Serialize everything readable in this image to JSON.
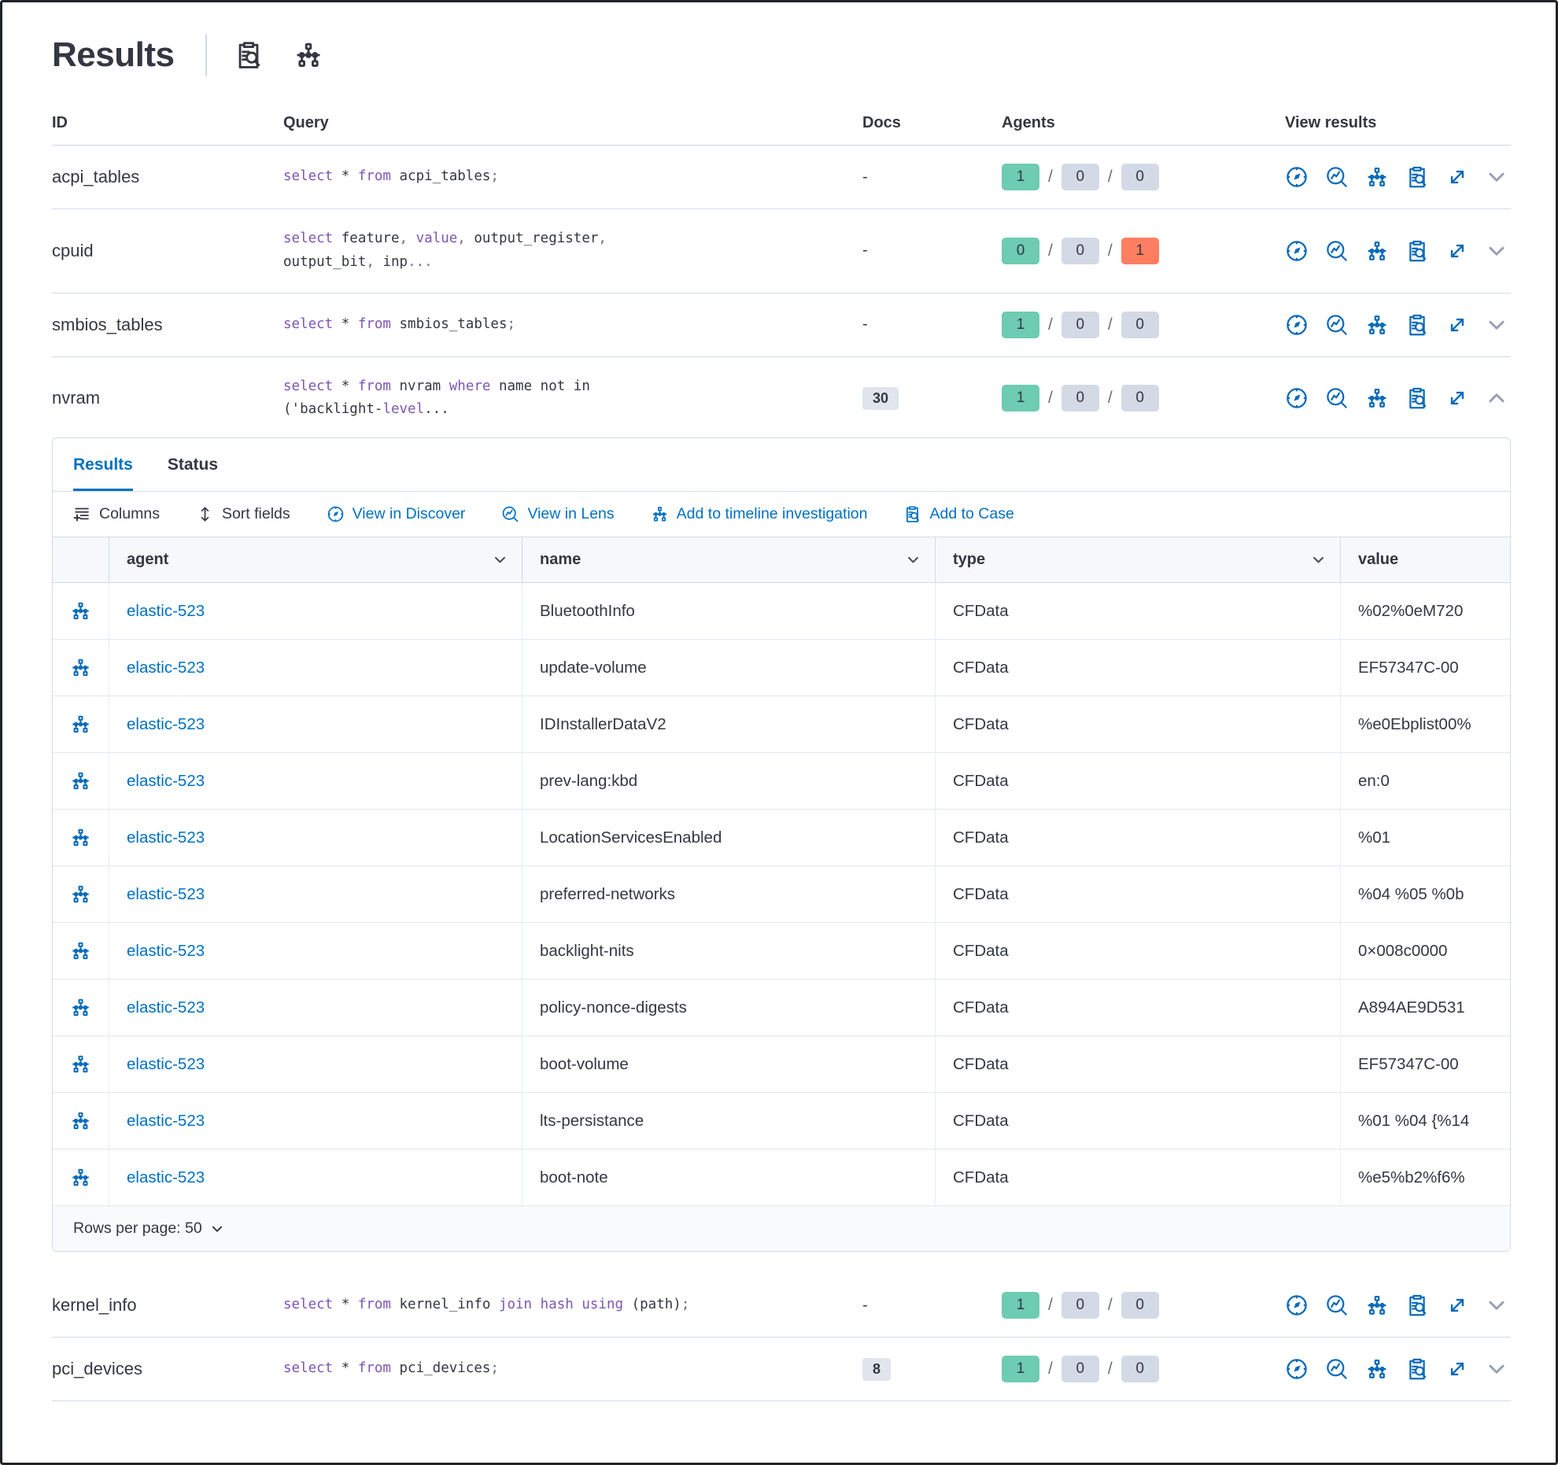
{
  "header": {
    "title": "Results"
  },
  "table": {
    "columns": {
      "id": "ID",
      "query": "Query",
      "docs": "Docs",
      "agents": "Agents",
      "view": "View results"
    }
  },
  "queries": [
    {
      "id": "acpi_tables",
      "docs": "-",
      "expanded": false,
      "agents": [
        {
          "value": "1",
          "color": "green"
        },
        {
          "value": "0",
          "color": "grey"
        },
        {
          "value": "0",
          "color": "grey"
        }
      ],
      "query": [
        [
          [
            "k",
            "select"
          ],
          [
            "t",
            " * "
          ],
          [
            "k",
            "from"
          ],
          [
            "t",
            " acpi_tables"
          ],
          [
            "p",
            ";"
          ]
        ]
      ]
    },
    {
      "id": "cpuid",
      "docs": "-",
      "expanded": false,
      "agents": [
        {
          "value": "0",
          "color": "green"
        },
        {
          "value": "0",
          "color": "grey"
        },
        {
          "value": "1",
          "color": "red"
        }
      ],
      "query": [
        [
          [
            "k",
            "select"
          ],
          [
            "t",
            " feature"
          ],
          [
            "p",
            ","
          ],
          [
            "t",
            " "
          ],
          [
            "k",
            "value"
          ],
          [
            "p",
            ","
          ],
          [
            "t",
            " output_register"
          ],
          [
            "p",
            ","
          ]
        ],
        [
          [
            "t",
            "output_bit"
          ],
          [
            "p",
            ","
          ],
          [
            "t",
            " inp"
          ],
          [
            "p",
            "..."
          ]
        ]
      ]
    },
    {
      "id": "smbios_tables",
      "docs": "-",
      "expanded": false,
      "agents": [
        {
          "value": "1",
          "color": "green"
        },
        {
          "value": "0",
          "color": "grey"
        },
        {
          "value": "0",
          "color": "grey"
        }
      ],
      "query": [
        [
          [
            "k",
            "select"
          ],
          [
            "t",
            " * "
          ],
          [
            "k",
            "from"
          ],
          [
            "t",
            " smbios_tables"
          ],
          [
            "p",
            ";"
          ]
        ]
      ]
    },
    {
      "id": "nvram",
      "docs": "30",
      "expanded": true,
      "agents": [
        {
          "value": "1",
          "color": "green"
        },
        {
          "value": "0",
          "color": "grey"
        },
        {
          "value": "0",
          "color": "grey"
        }
      ],
      "query": [
        [
          [
            "k",
            "select"
          ],
          [
            "t",
            " * "
          ],
          [
            "k",
            "from"
          ],
          [
            "t",
            " nvram "
          ],
          [
            "k",
            "where"
          ],
          [
            "t",
            " name not in"
          ]
        ],
        [
          [
            "t",
            "('backlight-"
          ],
          [
            "k",
            "level"
          ],
          [
            "t",
            "..."
          ]
        ]
      ]
    },
    {
      "id": "kernel_info",
      "docs": "-",
      "expanded": false,
      "agents": [
        {
          "value": "1",
          "color": "green"
        },
        {
          "value": "0",
          "color": "grey"
        },
        {
          "value": "0",
          "color": "grey"
        }
      ],
      "query": [
        [
          [
            "k",
            "select"
          ],
          [
            "t",
            " * "
          ],
          [
            "k",
            "from"
          ],
          [
            "t",
            " kernel_info "
          ],
          [
            "k",
            "join"
          ],
          [
            "t",
            " "
          ],
          [
            "k",
            "hash"
          ],
          [
            "t",
            " "
          ],
          [
            "k",
            "using"
          ],
          [
            "t",
            " (path)"
          ],
          [
            "p",
            ";"
          ]
        ]
      ]
    },
    {
      "id": "pci_devices",
      "docs": "8",
      "expanded": false,
      "agents": [
        {
          "value": "1",
          "color": "green"
        },
        {
          "value": "0",
          "color": "grey"
        },
        {
          "value": "0",
          "color": "grey"
        }
      ],
      "query": [
        [
          [
            "k",
            "select"
          ],
          [
            "t",
            " * "
          ],
          [
            "k",
            "from"
          ],
          [
            "t",
            " pci_devices"
          ],
          [
            "p",
            ";"
          ]
        ]
      ]
    }
  ],
  "panel": {
    "tabs": [
      {
        "label": "Results",
        "active": true
      },
      {
        "label": "Status",
        "active": false
      }
    ],
    "toolbar": [
      {
        "label": "Columns",
        "icon": "columns",
        "style": "dark"
      },
      {
        "label": "Sort fields",
        "icon": "sort",
        "style": "dark"
      },
      {
        "label": "View in Discover",
        "icon": "discover",
        "style": "link"
      },
      {
        "label": "View in Lens",
        "icon": "lens",
        "style": "link"
      },
      {
        "label": "Add to timeline investigation",
        "icon": "tree",
        "style": "link"
      },
      {
        "label": "Add to Case",
        "icon": "inspect",
        "style": "link"
      }
    ],
    "grid": {
      "columns": [
        {
          "label": "agent",
          "sortable": true
        },
        {
          "label": "name",
          "sortable": true
        },
        {
          "label": "type",
          "sortable": true
        },
        {
          "label": "value",
          "sortable": false
        }
      ],
      "rows": [
        {
          "agent": "elastic-523",
          "name": "BluetoothInfo",
          "type": "CFData",
          "value": "%02%0eM720"
        },
        {
          "agent": "elastic-523",
          "name": "update-volume",
          "type": "CFData",
          "value": "EF57347C-00"
        },
        {
          "agent": "elastic-523",
          "name": "IDInstallerDataV2",
          "type": "CFData",
          "value": "%e0Ebplist00%"
        },
        {
          "agent": "elastic-523",
          "name": "prev-lang:kbd",
          "type": "CFData",
          "value": "en:0"
        },
        {
          "agent": "elastic-523",
          "name": "LocationServicesEnabled",
          "type": "CFData",
          "value": "%01"
        },
        {
          "agent": "elastic-523",
          "name": "preferred-networks",
          "type": "CFData",
          "value": "%04 %05 %0b"
        },
        {
          "agent": "elastic-523",
          "name": "backlight-nits",
          "type": "CFData",
          "value": "0×008c0000"
        },
        {
          "agent": "elastic-523",
          "name": "policy-nonce-digests",
          "type": "CFData",
          "value": "A894AE9D531"
        },
        {
          "agent": "elastic-523",
          "name": "boot-volume",
          "type": "CFData",
          "value": "EF57347C-00"
        },
        {
          "agent": "elastic-523",
          "name": "lts-persistance",
          "type": "CFData",
          "value": "%01 %04 {%14"
        },
        {
          "agent": "elastic-523",
          "name": "boot-note",
          "type": "CFData",
          "value": "%e5%b2%f6%"
        }
      ]
    },
    "rows_per_page_label": "Rows per page: 50"
  }
}
